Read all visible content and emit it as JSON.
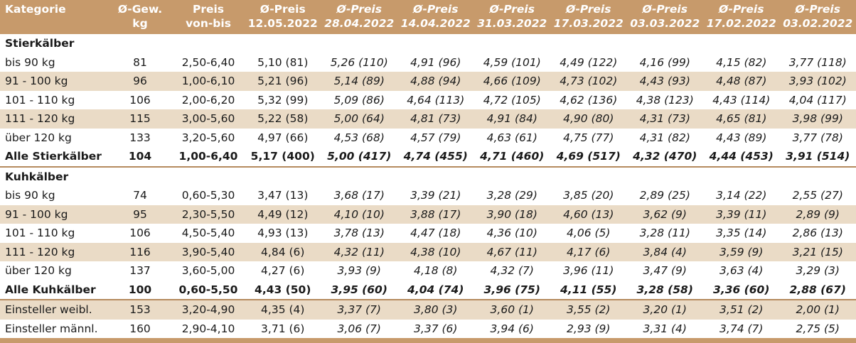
{
  "header": [
    "Kategorie",
    "Ø-Gew.\nkg",
    "Preis\nvon-bis",
    "Ø-Preis\n12.05.2022",
    "Ø-Preis\n28.04.2022",
    "Ø-Preis\n14.04.2022",
    "Ø-Preis\n31.03.2022",
    "Ø-Preis\n17.03.2022",
    "Ø-Preis\n03.03.2022",
    "Ø-Preis\n17.02.2022",
    "Ø-Preis\n03.02.2022"
  ],
  "header_lines": [
    [
      "Kategorie",
      ""
    ],
    [
      "Ø-Gew.",
      "kg"
    ],
    [
      "Preis",
      "von-bis"
    ],
    [
      "Ø-Preis",
      "12.05.2022"
    ],
    [
      "Ø-Preis",
      "28.04.2022"
    ],
    [
      "Ø-Preis",
      "14.04.2022"
    ],
    [
      "Ø-Preis",
      "31.03.2022"
    ],
    [
      "Ø-Preis",
      "17.03.2022"
    ],
    [
      "Ø-Preis",
      "03.03.2022"
    ],
    [
      "Ø-Preis",
      "17.02.2022"
    ],
    [
      "Ø-Preis",
      "03.02.2022"
    ]
  ],
  "sections": [
    {
      "title": "Stierkälber",
      "rows": [
        [
          "bis 90 kg",
          "81",
          "2,50-6,40",
          "5,10 (81)",
          "5,26 (110)",
          "4,91 (96)",
          "4,59 (101)",
          "4,49 (122)",
          "4,16 (99)",
          "4,15 (82)",
          "3,77 (118)"
        ],
        [
          "91 - 100 kg",
          "96",
          "1,00-6,10",
          "5,21 (96)",
          "5,14 (89)",
          "4,88 (94)",
          "4,66 (109)",
          "4,73 (102)",
          "4,43 (93)",
          "4,48 (87)",
          "3,93 (102)"
        ],
        [
          "101 - 110 kg",
          "106",
          "2,00-6,20",
          "5,32 (99)",
          "5,09 (86)",
          "4,64 (113)",
          "4,72 (105)",
          "4,62 (136)",
          "4,38 (123)",
          "4,43 (114)",
          "4,04 (117)"
        ],
        [
          "111 - 120 kg",
          "115",
          "3,00-5,60",
          "5,22 (58)",
          "5,00 (64)",
          "4,81 (73)",
          "4,91 (84)",
          "4,90 (80)",
          "4,31 (73)",
          "4,65 (81)",
          "3,98 (99)"
        ],
        [
          "über 120 kg",
          "133",
          "3,20-5,60",
          "4,97 (66)",
          "4,53 (68)",
          "4,57 (79)",
          "4,63 (61)",
          "4,75 (77)",
          "4,31 (82)",
          "4,43 (89)",
          "3,77 (78)"
        ]
      ],
      "total": [
        "Alle Stierkälber",
        "104",
        "1,00-6,40",
        "5,17 (400)",
        "5,00 (417)",
        "4,74 (455)",
        "4,71 (460)",
        "4,69 (517)",
        "4,32 (470)",
        "4,44 (453)",
        "3,91 (514)"
      ]
    },
    {
      "title": "Kuhkälber",
      "rows": [
        [
          "bis 90 kg",
          "74",
          "0,60-5,30",
          "3,47 (13)",
          "3,68 (17)",
          "3,39 (21)",
          "3,28 (29)",
          "3,85 (20)",
          "2,89 (25)",
          "3,14 (22)",
          "2,55 (27)"
        ],
        [
          "91 - 100 kg",
          "95",
          "2,30-5,50",
          "4,49 (12)",
          "4,10 (10)",
          "3,88 (17)",
          "3,90 (18)",
          "4,60  (13)",
          "3,62 (9)",
          "3,39 (11)",
          "2,89 (9)"
        ],
        [
          "101 - 110 kg",
          "106",
          "4,50-5,40",
          "4,93 (13)",
          "3,78 (13)",
          "4,47 (18)",
          "4,36 (10)",
          "4,06 (5)",
          "3,28 (11)",
          "3,35 (14)",
          "2,86 (13)"
        ],
        [
          "111 - 120 kg",
          "116",
          "3,90-5,40",
          "4,84 (6)",
          "4,32 (11)",
          "4,38 (10)",
          "4,67 (11)",
          "4,17 (6)",
          "3,84 (4)",
          "3,59 (9)",
          "3,21 (15)"
        ],
        [
          "über 120 kg",
          "137",
          "3,60-5,00",
          "4,27 (6)",
          "3,93 (9)",
          "4,18 (8)",
          "4,32 (7)",
          "3,96 (11)",
          "3,47 (9)",
          "3,63 (4)",
          "3,29 (3)"
        ]
      ],
      "total": [
        "Alle Kuhkälber",
        "100",
        "0,60-5,50",
        "4,43 (50)",
        "3,95 (60)",
        "4,04 (74)",
        "3,96 (75)",
        "4,11 (55)",
        "3,28 (58)",
        "3,36 (60)",
        "2,88 (67)"
      ]
    }
  ],
  "extra_rows": [
    [
      "Einsteller weibl.",
      "153",
      "3,20-4,90",
      "4,35 (4)",
      "3,37 (7)",
      "3,80 (3)",
      "3,60 (1)",
      "3,55 (2)",
      "3,20 (1)",
      "3,51 (2)",
      "2,00 (1)"
    ],
    [
      "Einsteller männl.",
      "160",
      "2,90-4,10",
      "3,71 (6)",
      "3,06 (7)",
      "3,37 (6)",
      "3,94 (6)",
      "2,93 (9)",
      "3,31 (4)",
      "3,74 (7)",
      "2,75 (5)"
    ]
  ],
  "colors": {
    "header_bg": "#c79a6b",
    "stripe_bg": "#eadbc6",
    "header_text": "#ffffff"
  }
}
